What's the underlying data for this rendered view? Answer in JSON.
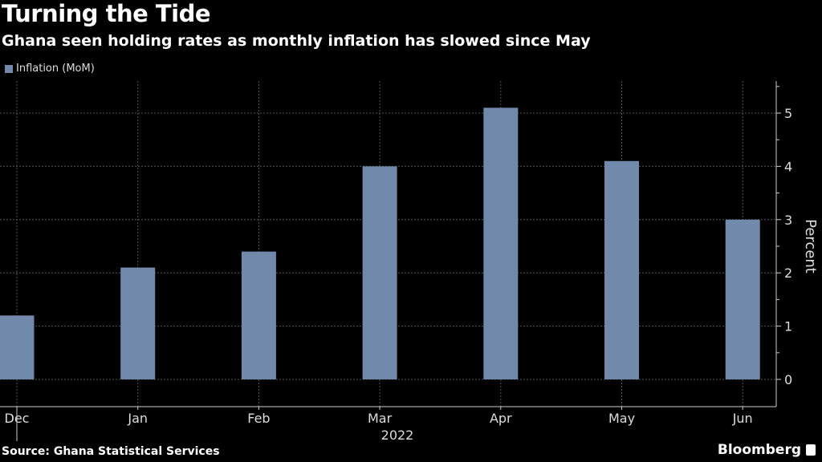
{
  "title": "Turning the Tide",
  "subtitle": "Ghana seen holding rates as monthly inflation has slowed since May",
  "source": "Source: Ghana Statistical Services",
  "brand": "Bloomberg",
  "chart_data": {
    "type": "bar",
    "categories": [
      "Dec",
      "Jan",
      "Feb",
      "Mar",
      "Apr",
      "May",
      "Jun"
    ],
    "year_label": "2022",
    "series": [
      {
        "name": "Inflation (MoM)",
        "values": [
          1.2,
          2.1,
          2.4,
          4.0,
          5.1,
          4.1,
          3.0
        ],
        "color": "#7189ab"
      }
    ],
    "ylabel": "Percent",
    "yticks": [
      0,
      1,
      2,
      3,
      4,
      5
    ],
    "ylim": [
      -0.5,
      5.6
    ],
    "y_axis_side": "right",
    "grid": true,
    "legend_placement": "top-left"
  }
}
